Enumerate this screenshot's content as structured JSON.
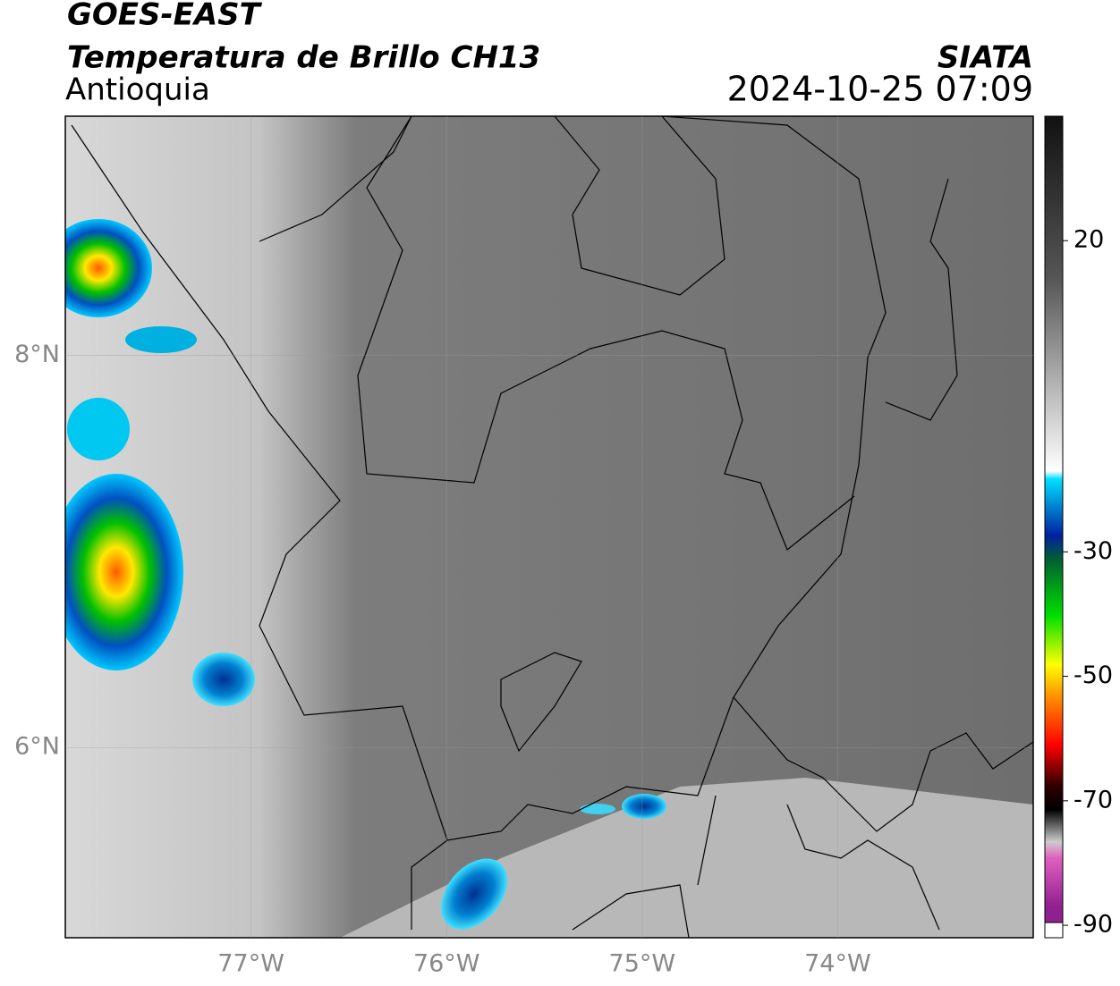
{
  "header": {
    "title": "GOES-EAST",
    "subtitle": "Temperatura de Brillo CH13",
    "region": "Antioquia",
    "source": "SIATA",
    "datetime": "2024-10-25 07:09"
  },
  "map": {
    "xlim": [
      -77.95,
      -73.0
    ],
    "ylim": [
      5.03,
      9.22
    ],
    "xticks": [
      {
        "value": -77,
        "label": "77°W"
      },
      {
        "value": -76,
        "label": "76°W"
      },
      {
        "value": -75,
        "label": "75°W"
      },
      {
        "value": -74,
        "label": "74°W"
      }
    ],
    "yticks": [
      {
        "value": 8,
        "label": "8°N"
      },
      {
        "value": 6,
        "label": "6°N"
      }
    ],
    "grid": true
  },
  "colorbar": {
    "lim": [
      -92,
      40
    ],
    "ticks": [
      20,
      -30,
      -50,
      -70,
      -90
    ]
  }
}
